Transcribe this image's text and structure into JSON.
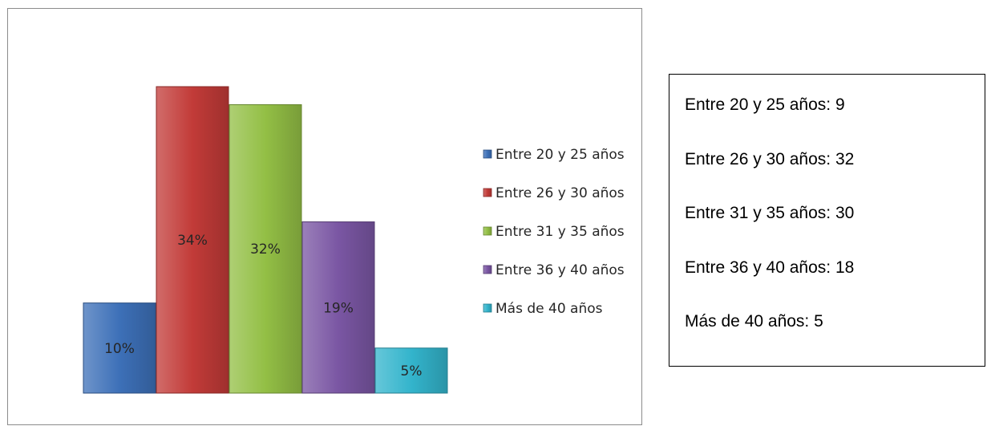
{
  "chart_data": {
    "type": "bar",
    "categories": [
      "Entre 20 y 25 años",
      "Entre 26 y 30 años",
      "Entre 31 y 35 años",
      "Entre 36 y 40 años",
      "Más de 40 años"
    ],
    "values": [
      10,
      34,
      32,
      19,
      5
    ],
    "value_labels": [
      "10%",
      "34%",
      "32%",
      "19%",
      "5%"
    ],
    "colors": [
      "#3d70b8",
      "#c23b38",
      "#93bf45",
      "#7a56a3",
      "#33b4cc"
    ],
    "title": "",
    "xlabel": "",
    "ylabel": "",
    "ylim": [
      0,
      34
    ],
    "grid": false,
    "legend_position": "right"
  },
  "stats": {
    "items": [
      "Entre 20 y 25 años: 9",
      "Entre 26 y 30 años: 32",
      "Entre 31 y 35 años: 30",
      "Entre 36 y 40 años: 18",
      "Más de 40 años: 5"
    ]
  }
}
